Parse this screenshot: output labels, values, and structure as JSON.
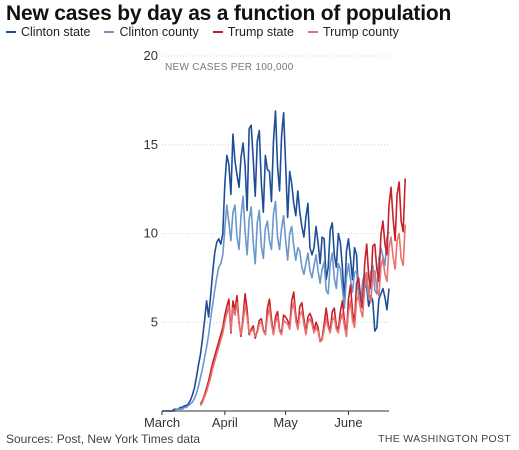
{
  "chart_data": {
    "type": "line",
    "title": "New cases by day as a function of population",
    "ylabel": "NEW CASES PER 100,000",
    "xlabel": "",
    "ylim": [
      0,
      20
    ],
    "yticks": [
      "5",
      "10",
      "15",
      "20"
    ],
    "xticks": [
      {
        "label": "March",
        "day": 1
      },
      {
        "label": "April",
        "day": 32
      },
      {
        "label": "May",
        "day": 62
      },
      {
        "label": "June",
        "day": 93
      }
    ],
    "x_range_days": [
      1,
      113
    ],
    "grid": true,
    "legend_position": "top-left",
    "series": [
      {
        "name": "Clinton state",
        "color": "#1f4e97",
        "start_day": 1,
        "values": [
          0,
          0,
          0,
          0,
          0,
          0,
          0.1,
          0.1,
          0.1,
          0.2,
          0.2,
          0.3,
          0.3,
          0.4,
          0.6,
          0.9,
          1.3,
          1.9,
          2.6,
          3.2,
          4.1,
          5.1,
          6.2,
          5.3,
          6.5,
          7.8,
          8.9,
          9.5,
          9.7,
          9.4,
          10.0,
          12.8,
          14.4,
          13.9,
          12.2,
          15.6,
          14.1,
          13.3,
          12.6,
          14.3,
          15.1,
          13.8,
          11.3,
          15.9,
          16.1,
          14.2,
          12.1,
          15.2,
          15.8,
          12.9,
          11.2,
          14.4,
          13.6,
          13.5,
          11.8,
          15.2,
          16.9,
          13.8,
          12.4,
          15.5,
          16.8,
          13.9,
          10.9,
          13.5,
          12.8,
          11.7,
          11.0,
          12.4,
          11.2,
          10.4,
          9.8,
          10.9,
          11.7,
          9.2,
          8.8,
          9.2,
          10.4,
          9.5,
          8.3,
          9.8,
          9.7,
          7.4,
          8.1,
          10.2,
          10.6,
          8.8,
          8.1,
          10.0,
          9.5,
          8.1,
          6.2,
          9.0,
          9.7,
          8.6,
          7.4,
          9.2,
          8.8,
          6.5,
          5.8,
          7.2,
          7.4,
          6.9,
          5.9,
          6.5,
          6.2,
          4.5,
          4.7,
          6.3,
          6.6,
          6.9,
          6.4,
          5.7,
          6.9
        ]
      },
      {
        "name": "Clinton county",
        "color": "#6b97cc",
        "start_day": 1,
        "values": [
          0,
          0,
          0,
          0,
          0,
          0,
          0,
          0.1,
          0.1,
          0.1,
          0.1,
          0.2,
          0.2,
          0.3,
          0.4,
          0.5,
          0.7,
          1.0,
          1.4,
          1.9,
          2.4,
          3.0,
          3.6,
          4.3,
          5.2,
          6.0,
          6.8,
          7.5,
          8.1,
          8.3,
          8.8,
          10.3,
          11.6,
          10.6,
          9.6,
          11.2,
          11.6,
          9.8,
          9.1,
          11.0,
          12.1,
          10.1,
          8.8,
          10.8,
          11.5,
          9.5,
          8.3,
          10.6,
          11.3,
          9.3,
          8.6,
          10.3,
          10.7,
          9.6,
          9.1,
          11.1,
          11.8,
          9.8,
          9.1,
          10.3,
          11.0,
          9.6,
          8.5,
          10.0,
          10.4,
          9.3,
          8.5,
          9.2,
          9.0,
          8.1,
          7.7,
          8.3,
          8.9,
          7.9,
          7.5,
          8.2,
          8.8,
          7.9,
          7.2,
          8.0,
          8.4,
          6.8,
          6.6,
          8.3,
          8.9,
          7.5,
          6.9,
          8.3,
          8.0,
          6.9,
          5.8,
          7.5,
          8.3,
          7.4,
          6.7,
          7.8,
          7.9,
          6.5,
          6.0,
          7.3,
          7.8,
          7.1,
          6.3,
          7.8,
          8.2,
          6.8,
          6.6,
          8.6,
          9.2,
          8.7,
          8.2,
          9.8,
          10.1
        ]
      },
      {
        "name": "Trump state",
        "color": "#c8202b",
        "start_day": 20,
        "values": [
          0.4,
          0.6,
          0.9,
          1.3,
          1.7,
          2.2,
          2.7,
          3.1,
          3.5,
          3.9,
          4.3,
          4.7,
          5.4,
          5.9,
          6.3,
          4.4,
          6.2,
          5.7,
          6.5,
          5.0,
          4.2,
          5.3,
          6.6,
          5.7,
          4.3,
          4.6,
          4.8,
          4.1,
          4.5,
          5.1,
          5.2,
          4.6,
          4.3,
          5.8,
          6.3,
          5.2,
          4.3,
          5.3,
          5.6,
          4.6,
          4.4,
          5.4,
          5.3,
          5.1,
          4.8,
          6.2,
          6.7,
          5.4,
          4.7,
          5.9,
          6.1,
          5.2,
          4.4,
          5.3,
          5.5,
          5.2,
          4.5,
          5.0,
          4.7,
          3.9,
          4.1,
          4.9,
          5.8,
          4.9,
          4.5,
          5.6,
          5.8,
          4.8,
          4.6,
          5.6,
          6.2,
          5.1,
          4.3,
          6.3,
          7.1,
          5.6,
          5.0,
          7.2,
          7.5,
          6.4,
          5.8,
          8.3,
          9.4,
          7.6,
          6.9,
          9.3,
          9.4,
          8.0,
          7.3,
          9.9,
          10.7,
          9.4,
          8.8,
          11.6,
          12.6,
          10.9,
          9.6,
          12.2,
          12.9,
          10.7,
          10.1,
          13.1
        ]
      },
      {
        "name": "Trump county",
        "color": "#e8706f",
        "start_day": 20,
        "values": [
          0.3,
          0.5,
          0.8,
          1.1,
          1.5,
          1.9,
          2.4,
          2.8,
          3.2,
          3.6,
          4.0,
          4.4,
          5.0,
          5.5,
          5.9,
          4.5,
          5.8,
          5.4,
          6.1,
          4.9,
          4.3,
          5.0,
          6.0,
          5.3,
          4.4,
          4.5,
          4.6,
          4.2,
          4.4,
          4.9,
          5.0,
          4.5,
          4.3,
          5.3,
          5.8,
          4.9,
          4.3,
          5.0,
          5.3,
          4.5,
          4.3,
          5.1,
          5.0,
          4.9,
          4.6,
          5.7,
          6.1,
          5.1,
          4.6,
          5.4,
          5.6,
          4.9,
          4.3,
          5.0,
          5.2,
          4.9,
          4.4,
          4.7,
          4.5,
          3.9,
          4.0,
          4.6,
          5.2,
          4.7,
          4.4,
          5.1,
          5.3,
          4.6,
          4.4,
          5.1,
          5.5,
          4.8,
          4.2,
          5.6,
          6.2,
          5.1,
          4.7,
          6.2,
          6.5,
          5.7,
          5.3,
          7.0,
          7.8,
          6.6,
          6.1,
          7.8,
          7.9,
          6.9,
          6.5,
          8.1,
          8.6,
          7.7,
          7.3,
          9.2,
          9.8,
          8.7,
          8.0,
          9.6,
          10.0,
          8.6,
          8.2,
          10.5
        ]
      }
    ]
  },
  "footer": {
    "source": "Sources: Post, New York Times data",
    "brand": "THE WASHINGTON POST"
  }
}
